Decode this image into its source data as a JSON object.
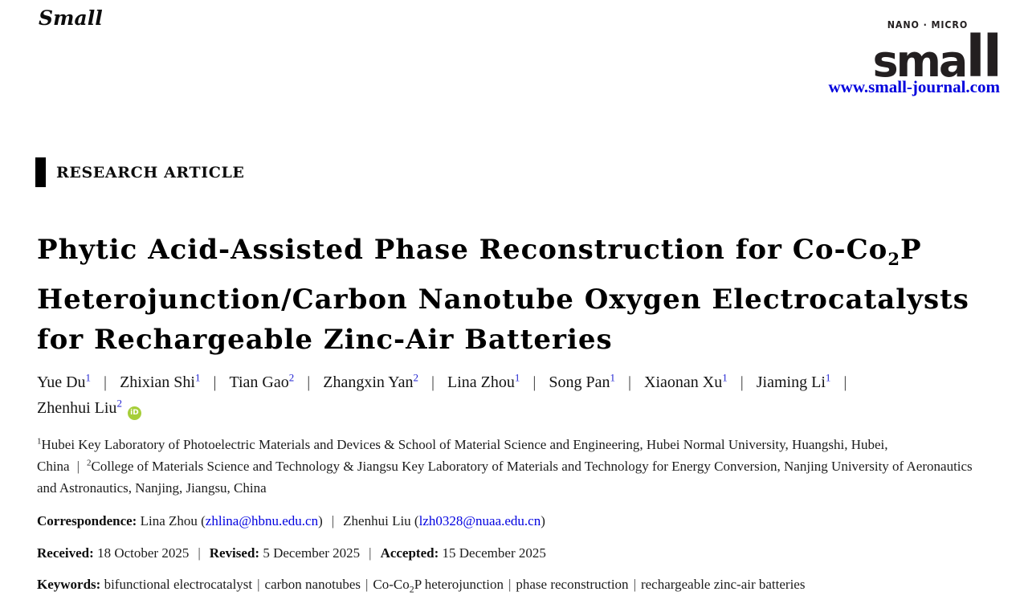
{
  "header": {
    "journal_name": "Small",
    "logo_tagline": "NANO · MICRO",
    "logo_wordmark_sma": "sma",
    "logo_wordmark_ll": "ll",
    "website": "www.small-journal.com"
  },
  "article": {
    "section_label": "RESEARCH ARTICLE",
    "title_lines": [
      "Phytic Acid-Assisted Phase Reconstruction for Co-Co~2~P",
      "Heterojunction/Carbon Nanotube Oxygen Electrocatalysts",
      "for Rechargeable Zinc-Air Batteries"
    ]
  },
  "authors": [
    {
      "name": "Yue Du",
      "sup": "1"
    },
    {
      "name": "Zhixian Shi",
      "sup": "1"
    },
    {
      "name": "Tian Gao",
      "sup": "2"
    },
    {
      "name": "Zhangxin Yan",
      "sup": "2"
    },
    {
      "name": "Lina Zhou",
      "sup": "1"
    },
    {
      "name": "Song Pan",
      "sup": "1"
    },
    {
      "name": "Xiaonan Xu",
      "sup": "1"
    },
    {
      "name": "Jiaming Li",
      "sup": "1"
    },
    {
      "name": "Zhenhui Liu",
      "sup": "2",
      "orcid": true
    }
  ],
  "affiliations": [
    {
      "sup": "1",
      "text": "Hubei Key Laboratory of Photoelectric Materials and Devices & School of Material Science and Engineering, Hubei Normal University, Huangshi, Hubei, China"
    },
    {
      "sup": "2",
      "text": "College of Materials Science and Technology & Jiangsu Key Laboratory of Materials and Technology for Energy Conversion, Nanjing University of Aeronautics and Astronautics, Nanjing, Jiangsu, China"
    }
  ],
  "correspondence": {
    "label": "Correspondence:",
    "contacts": [
      {
        "name": "Lina Zhou",
        "email": "zhlina@hbnu.edu.cn"
      },
      {
        "name": "Zhenhui Liu",
        "email": "lzh0328@nuaa.edu.cn"
      }
    ]
  },
  "dates": [
    {
      "label": "Received:",
      "value": "18 October 2025"
    },
    {
      "label": "Revised:",
      "value": "5 December 2025"
    },
    {
      "label": "Accepted:",
      "value": "15 December 2025"
    }
  ],
  "keywords": {
    "label": "Keywords:",
    "items": [
      "bifunctional electrocatalyst",
      "carbon nanotubes",
      "Co-Co~2~P heterojunction",
      "phase reconstruction",
      "rechargeable zinc-air batteries"
    ]
  },
  "icons": {
    "orcid": "iD",
    "separator": "|"
  },
  "colors": {
    "link_blue": "#0000e0",
    "superscript_blue": "#1d1fd1",
    "orcid_green": "#a6ce39",
    "logo_black": "#231f20"
  }
}
